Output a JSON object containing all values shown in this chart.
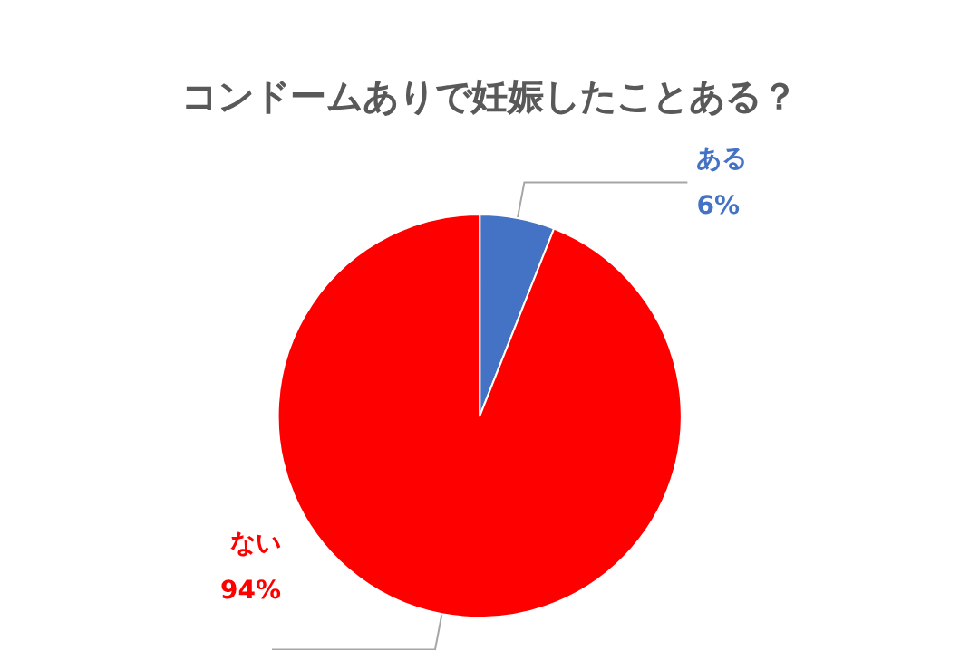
{
  "chart_data": {
    "type": "pie",
    "title": "コンドームありで妊娠したことある？",
    "categories": [
      "ある",
      "ない"
    ],
    "values": [
      6,
      94
    ],
    "colors": [
      "#4472c4",
      "#ff0000"
    ],
    "value_labels": [
      "6%",
      "94%"
    ]
  }
}
